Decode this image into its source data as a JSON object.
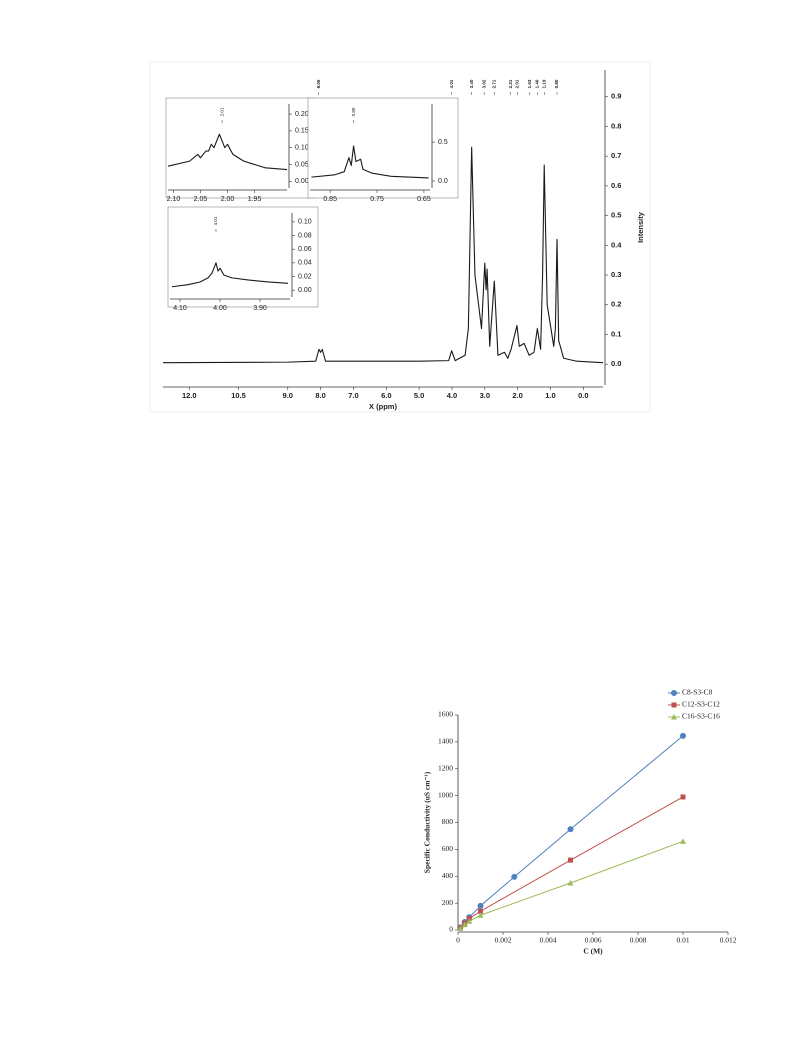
{
  "chart_data": [
    {
      "type": "line",
      "xlabel": "X (ppm)",
      "ylabel": "Intensity",
      "y_axis_side": "right",
      "color": "#1a1a1a",
      "xlim": [
        12.8,
        -0.6
      ],
      "ylim": [
        -0.07,
        0.99
      ],
      "xticks": [
        {
          "value": 12,
          "label": "12.0"
        },
        {
          "value": 10.5,
          "label": "10.5"
        },
        {
          "value": 9,
          "label": "9.0"
        },
        {
          "value": 8,
          "label": "8.0"
        },
        {
          "value": 7,
          "label": "7.0"
        },
        {
          "value": 6,
          "label": "6.0"
        },
        {
          "value": 5,
          "label": "5.0"
        },
        {
          "value": 4,
          "label": "4.0"
        },
        {
          "value": 3,
          "label": "3.0"
        },
        {
          "value": 2,
          "label": "2.0"
        },
        {
          "value": 1,
          "label": "1.0"
        },
        {
          "value": 0,
          "label": "0.0"
        }
      ],
      "yticks": [
        {
          "value": 0,
          "label": "0.0"
        },
        {
          "value": 0.1,
          "label": "0.1"
        },
        {
          "value": 0.2,
          "label": "0.2"
        },
        {
          "value": 0.3,
          "label": "0.3"
        },
        {
          "value": 0.4,
          "label": "0.4"
        },
        {
          "value": 0.5,
          "label": "0.5"
        },
        {
          "value": 0.6,
          "label": "0.6"
        },
        {
          "value": 0.7,
          "label": "0.7"
        },
        {
          "value": 0.8,
          "label": "0.8"
        },
        {
          "value": 0.9,
          "label": "0.9"
        }
      ],
      "x": [
        12.8,
        9.0,
        8.15,
        8.05,
        8.0,
        7.95,
        7.85,
        5.0,
        4.1,
        4.01,
        3.9,
        3.6,
        3.5,
        3.4,
        3.3,
        3.1,
        3.0,
        2.96,
        2.93,
        2.85,
        2.71,
        2.6,
        2.4,
        2.3,
        2.2,
        2.02,
        1.95,
        1.8,
        1.65,
        1.5,
        1.4,
        1.3,
        1.24,
        1.19,
        1.1,
        0.9,
        0.85,
        0.8,
        0.75,
        0.6,
        0.2,
        -0.6
      ],
      "values": [
        0.005,
        0.007,
        0.01,
        0.05,
        0.04,
        0.05,
        0.01,
        0.01,
        0.012,
        0.045,
        0.012,
        0.03,
        0.12,
        0.73,
        0.3,
        0.12,
        0.34,
        0.25,
        0.32,
        0.06,
        0.28,
        0.03,
        0.04,
        0.02,
        0.05,
        0.13,
        0.06,
        0.07,
        0.03,
        0.04,
        0.12,
        0.05,
        0.3,
        0.67,
        0.2,
        0.06,
        0.12,
        0.42,
        0.08,
        0.02,
        0.01,
        0.005
      ],
      "annotations": [
        {
          "x": 8.06,
          "label": "8.06"
        },
        {
          "x": 4.01,
          "label": "4.01"
        },
        {
          "x": 3.4,
          "label": "3.40"
        },
        {
          "x": 3.02,
          "label": "3.02"
        },
        {
          "x": 2.71,
          "label": "2.71"
        },
        {
          "x": 2.21,
          "label": "2.21"
        },
        {
          "x": 2.01,
          "label": "2.01"
        },
        {
          "x": 1.63,
          "label": "1.63"
        },
        {
          "x": 1.4,
          "label": "1.40"
        },
        {
          "x": 1.19,
          "label": "1.19"
        },
        {
          "x": 0.8,
          "label": "0.80"
        }
      ]
    },
    {
      "type": "line",
      "y_axis_side": "right",
      "color": "#1a1a1a",
      "xlim": [
        2.11,
        1.89
      ],
      "ylim": [
        -0.02,
        0.23
      ],
      "xticks": [
        {
          "value": 2.1,
          "label": "2.10"
        },
        {
          "value": 2.05,
          "label": "2.05"
        },
        {
          "value": 2.0,
          "label": "2.00"
        },
        {
          "value": 1.95,
          "label": "1.95"
        }
      ],
      "yticks": [
        {
          "value": 0,
          "label": "0.00"
        },
        {
          "value": 0.05,
          "label": "0.05"
        },
        {
          "value": 0.1,
          "label": "0.10"
        },
        {
          "value": 0.15,
          "label": "0.15"
        },
        {
          "value": 0.2,
          "label": "0.20"
        }
      ],
      "x": [
        2.11,
        2.07,
        2.055,
        2.05,
        2.04,
        2.035,
        2.03,
        2.025,
        2.015,
        2.01,
        2.005,
        2.0,
        1.99,
        1.97,
        1.93,
        1.89
      ],
      "values": [
        0.045,
        0.06,
        0.08,
        0.07,
        0.09,
        0.09,
        0.11,
        0.1,
        0.14,
        0.12,
        0.1,
        0.11,
        0.08,
        0.06,
        0.04,
        0.035
      ],
      "annotations": [
        {
          "x": 2.01,
          "label": "2.01"
        }
      ]
    },
    {
      "type": "line",
      "y_axis_side": "right",
      "color": "#1a1a1a",
      "xlim": [
        0.893,
        0.637
      ],
      "ylim": [
        -0.09,
        0.99
      ],
      "xticks": [
        {
          "value": 0.85,
          "label": "0.85"
        },
        {
          "value": 0.75,
          "label": "0.75"
        },
        {
          "value": 0.65,
          "label": "0.65"
        }
      ],
      "yticks": [
        {
          "value": 0,
          "label": "0.0"
        },
        {
          "value": 0.5,
          "label": "0.5"
        }
      ],
      "x": [
        0.89,
        0.84,
        0.82,
        0.81,
        0.805,
        0.8,
        0.795,
        0.785,
        0.78,
        0.76,
        0.72,
        0.64
      ],
      "values": [
        0.05,
        0.08,
        0.12,
        0.3,
        0.2,
        0.45,
        0.25,
        0.28,
        0.15,
        0.1,
        0.06,
        0.04
      ],
      "annotations": [
        {
          "x": 0.8,
          "label": "0.80"
        }
      ]
    },
    {
      "type": "line",
      "y_axis_side": "right",
      "color": "#1a1a1a",
      "xlim": [
        4.125,
        3.825
      ],
      "ylim": [
        -0.01,
        0.113
      ],
      "xticks": [
        {
          "value": 4.1,
          "label": "4.10"
        },
        {
          "value": 4.0,
          "label": "4.00"
        },
        {
          "value": 3.9,
          "label": "3.90"
        }
      ],
      "yticks": [
        {
          "value": 0,
          "label": "0.00"
        },
        {
          "value": 0.02,
          "label": "0.02"
        },
        {
          "value": 0.04,
          "label": "0.04"
        },
        {
          "value": 0.06,
          "label": "0.06"
        },
        {
          "value": 0.08,
          "label": "0.08"
        },
        {
          "value": 0.1,
          "label": "0.10"
        }
      ],
      "x": [
        4.12,
        4.08,
        4.05,
        4.03,
        4.02,
        4.01,
        4.005,
        4.0,
        3.99,
        3.97,
        3.93,
        3.88,
        3.83
      ],
      "values": [
        0.005,
        0.008,
        0.012,
        0.018,
        0.025,
        0.04,
        0.028,
        0.032,
        0.022,
        0.018,
        0.015,
        0.012,
        0.01
      ],
      "annotations": [
        {
          "x": 4.01,
          "label": "4.01"
        }
      ]
    },
    {
      "type": "line",
      "xlabel": "C (M)",
      "ylabel": "Specific Conductivity  (uS cm⁻¹)",
      "y_axis_side": "left",
      "legend": "top-right",
      "xlim": [
        0,
        0.012
      ],
      "ylim": [
        0,
        1600
      ],
      "xticks": [
        0,
        0.002,
        0.004,
        0.006,
        0.008,
        0.01,
        0.012
      ],
      "yticks": [
        0,
        200,
        400,
        600,
        800,
        1000,
        1200,
        1400,
        1600
      ],
      "series": [
        {
          "name": "C8-S3-C8",
          "color": "#4f81bd",
          "marker": "circle",
          "x": [
            0.0001,
            0.0003,
            0.0005,
            0.001,
            0.0025,
            0.005,
            0.01
          ],
          "values": [
            20,
            60,
            95,
            180,
            395,
            750,
            1445
          ]
        },
        {
          "name": "C12-S3-C12",
          "color": "#c0504d",
          "marker": "square",
          "x": [
            0.0001,
            0.0003,
            0.0005,
            0.001,
            0.005,
            0.01
          ],
          "values": [
            15,
            50,
            85,
            140,
            520,
            990
          ]
        },
        {
          "name": "C16-S3-C16",
          "color": "#9bbb59",
          "marker": "triangle",
          "x": [
            0.0001,
            0.0003,
            0.0005,
            0.001,
            0.005,
            0.01
          ],
          "values": [
            12,
            40,
            65,
            110,
            350,
            660
          ]
        }
      ]
    }
  ]
}
